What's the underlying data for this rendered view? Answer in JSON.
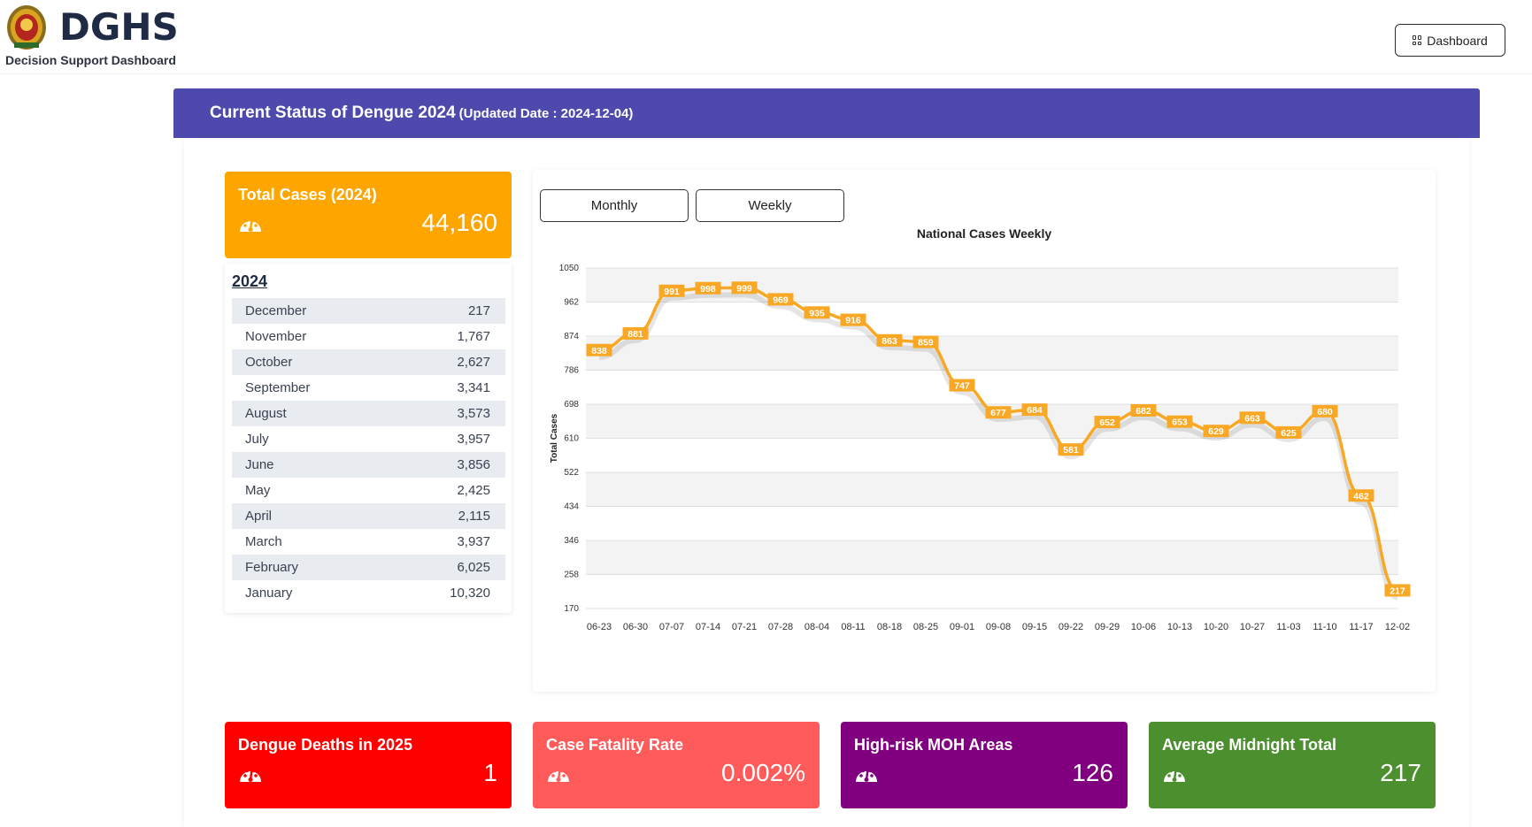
{
  "header": {
    "brand": "DGHS",
    "subtitle": "Decision Support Dashboard",
    "dashboard_button": "Dashboard"
  },
  "panel": {
    "title": "Current Status of Dengue 2024",
    "updated": "(Updated Date : 2024-12-04)"
  },
  "total_card": {
    "title": "Total Cases (2024)",
    "value": "44,160",
    "icon": "gauge-icon",
    "color": "#ffa500"
  },
  "monthly": {
    "year": "2024",
    "rows": [
      {
        "month": "December",
        "value": "217"
      },
      {
        "month": "November",
        "value": "1,767"
      },
      {
        "month": "October",
        "value": "2,627"
      },
      {
        "month": "September",
        "value": "3,341"
      },
      {
        "month": "August",
        "value": "3,573"
      },
      {
        "month": "July",
        "value": "3,957"
      },
      {
        "month": "June",
        "value": "3,856"
      },
      {
        "month": "May",
        "value": "2,425"
      },
      {
        "month": "April",
        "value": "2,115"
      },
      {
        "month": "March",
        "value": "3,937"
      },
      {
        "month": "February",
        "value": "6,025"
      },
      {
        "month": "January",
        "value": "10,320"
      }
    ]
  },
  "tabs": {
    "monthly": "Monthly",
    "weekly": "Weekly"
  },
  "chart_data": {
    "type": "line",
    "title": "National Cases Weekly",
    "xlabel": "",
    "ylabel": "Total Cases",
    "ylim": [
      170,
      1050
    ],
    "yticks": [
      1050,
      962,
      874,
      786,
      698,
      610,
      522,
      434,
      346,
      258,
      170
    ],
    "categories": [
      "06-23",
      "06-30",
      "07-07",
      "07-14",
      "07-21",
      "07-28",
      "08-04",
      "08-11",
      "08-18",
      "08-25",
      "09-01",
      "09-08",
      "09-15",
      "09-22",
      "09-29",
      "10-06",
      "10-13",
      "10-20",
      "10-27",
      "11-03",
      "11-10",
      "11-17",
      "12-02"
    ],
    "values": [
      838,
      881,
      991,
      998,
      999,
      969,
      935,
      916,
      863,
      859,
      747,
      677,
      684,
      581,
      652,
      682,
      653,
      629,
      663,
      625,
      680,
      462,
      217
    ],
    "color": "#f9a825",
    "grid": true,
    "legend": "none"
  },
  "stats": [
    {
      "title": "Dengue Deaths in 2025",
      "value": "1",
      "color": "#ff0000"
    },
    {
      "title": "Case Fatality Rate",
      "value": "0.002%",
      "color": "#ff5b5b"
    },
    {
      "title": "High-risk MOH Areas",
      "value": "126",
      "color": "#800080"
    },
    {
      "title": "Average Midnight Total",
      "value": "217",
      "color": "#4b8f2e"
    }
  ]
}
